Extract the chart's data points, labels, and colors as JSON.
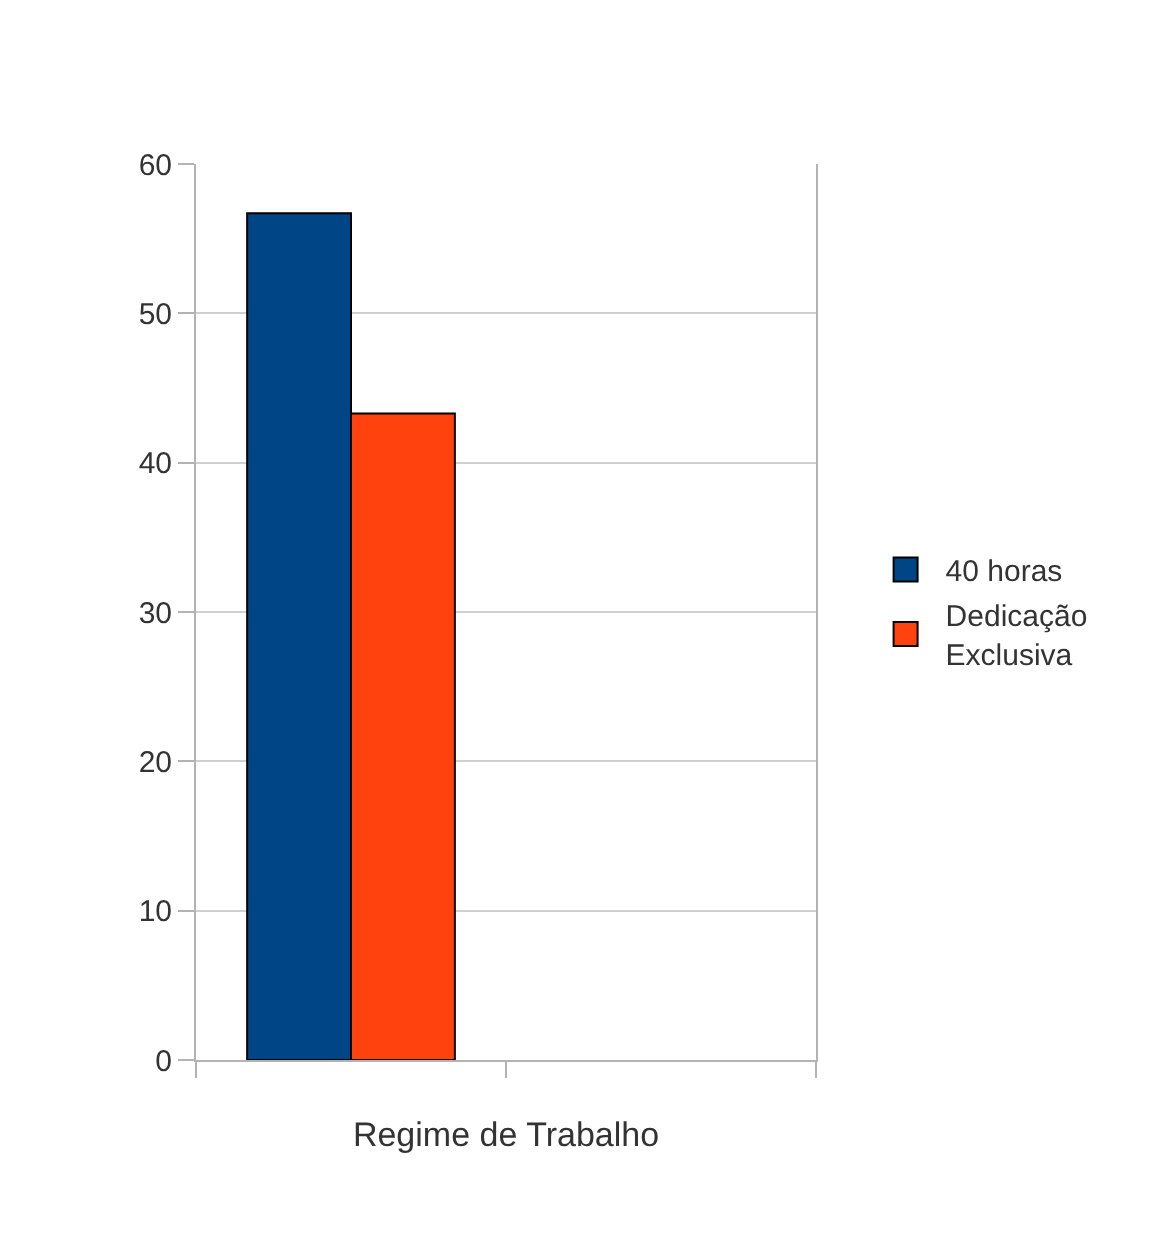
{
  "chart_data": {
    "type": "bar",
    "xlabel": "Regime de Trabalho",
    "categories": [
      null,
      null
    ],
    "series": [
      {
        "name": "40 horas",
        "color": "#004586",
        "values": [
          56.7,
          null
        ]
      },
      {
        "name": "Dedicação Exclusiva",
        "color": "#ff420e",
        "values": [
          43.3,
          null
        ]
      }
    ],
    "ylim": [
      0,
      60
    ],
    "yticks": [
      0,
      10,
      20,
      30,
      40,
      50,
      60
    ],
    "grid": "y",
    "legend": "right"
  }
}
